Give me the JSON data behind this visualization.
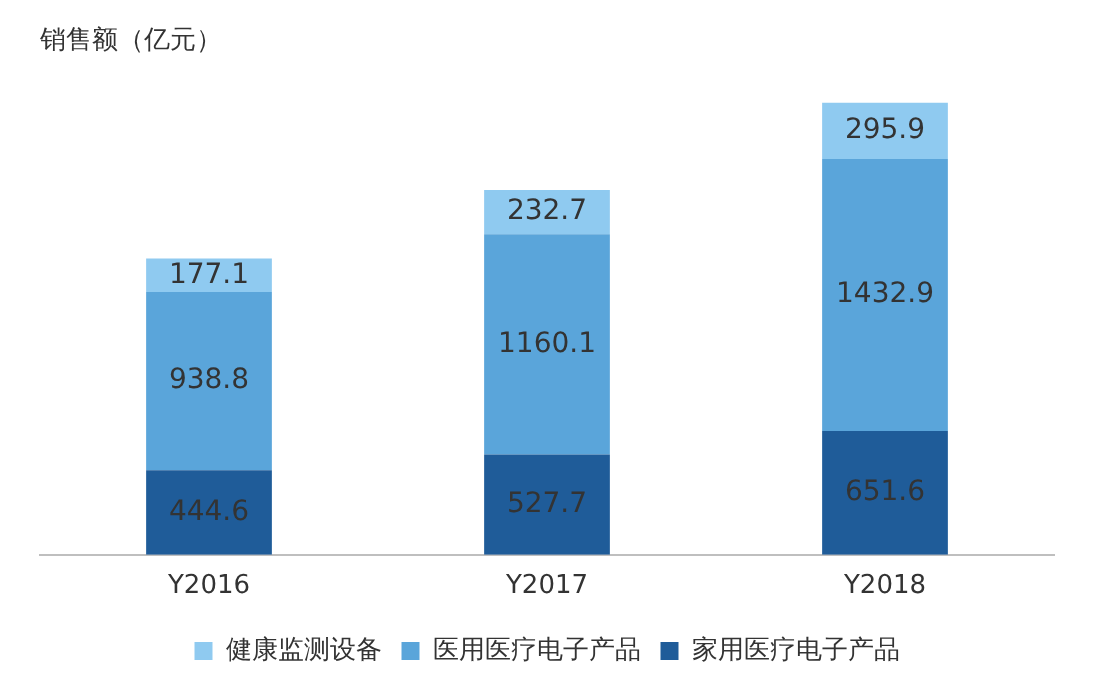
{
  "chart_data": {
    "type": "bar",
    "ylabel": "销售额（亿元）",
    "categories": [
      "Y2016",
      "Y2017",
      "Y2018"
    ],
    "stacked": true,
    "data_labels": true,
    "legend": "bottom",
    "grid": false,
    "series": [
      {
        "name": "家用医疗电子产品",
        "color": "#1f5c99",
        "values": [
          444.6,
          527.7,
          651.6
        ]
      },
      {
        "name": "医用医疗电子产品",
        "color": "#5aa5da",
        "values": [
          938.8,
          1160.1,
          1432.9
        ]
      },
      {
        "name": "健康监测设备",
        "color": "#8fcaf0",
        "values": [
          177.1,
          232.7,
          295.9
        ]
      }
    ]
  }
}
